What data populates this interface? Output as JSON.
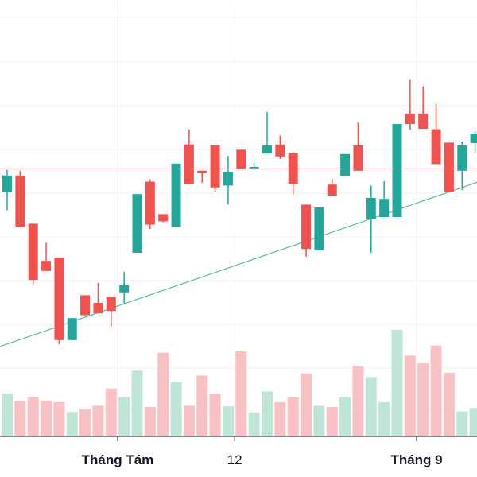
{
  "chart_data": {
    "type": "candlestick",
    "title": "",
    "xlabel": "",
    "ylabel": "",
    "ylim": [
      0,
      100
    ],
    "x_tick_labels": [
      {
        "label": "Tháng Tám",
        "index": 8.5,
        "bold": true
      },
      {
        "label": "12",
        "index": 17.5,
        "bold": false
      },
      {
        "label": "Tháng 9",
        "index": 31.5,
        "bold": true
      }
    ],
    "candles": [
      {
        "o": 59.8,
        "h": 64.4,
        "l": 55.9,
        "c": 63.2
      },
      {
        "o": 63.2,
        "h": 64.2,
        "l": 52.5,
        "c": 52.5
      },
      {
        "o": 53.1,
        "h": 53.1,
        "l": 40.4,
        "c": 41.3
      },
      {
        "o": 45.3,
        "h": 49.1,
        "l": 43.2,
        "c": 43.2
      },
      {
        "o": 46.0,
        "h": 46.0,
        "l": 27.8,
        "c": 28.7
      },
      {
        "o": 28.7,
        "h": 33.3,
        "l": 28.7,
        "c": 33.3
      },
      {
        "o": 38.1,
        "h": 38.1,
        "l": 33.9,
        "c": 33.9
      },
      {
        "o": 36.5,
        "h": 40.7,
        "l": 34.3,
        "c": 34.3
      },
      {
        "o": 37.7,
        "h": 37.7,
        "l": 31.6,
        "c": 34.8
      },
      {
        "o": 38.7,
        "h": 43.0,
        "l": 36.4,
        "c": 40.2
      },
      {
        "o": 47.0,
        "h": 59.3,
        "l": 47.0,
        "c": 59.3
      },
      {
        "o": 61.9,
        "h": 62.4,
        "l": 52.0,
        "c": 52.9
      },
      {
        "o": 55.1,
        "h": 55.1,
        "l": 53.4,
        "c": 53.6
      },
      {
        "o": 52.4,
        "h": 65.7,
        "l": 52.4,
        "c": 65.7
      },
      {
        "o": 69.7,
        "h": 72.9,
        "l": 61.4,
        "c": 61.4
      },
      {
        "o": 64.2,
        "h": 64.2,
        "l": 61.7,
        "c": 63.8
      },
      {
        "o": 69.5,
        "h": 69.5,
        "l": 59.8,
        "c": 60.7
      },
      {
        "o": 61.1,
        "h": 67.3,
        "l": 57.1,
        "c": 64.0
      },
      {
        "o": 68.6,
        "h": 68.6,
        "l": 64.6,
        "c": 64.6
      },
      {
        "o": 64.7,
        "h": 65.9,
        "l": 64.3,
        "c": 65.0
      },
      {
        "o": 67.8,
        "h": 76.5,
        "l": 67.8,
        "c": 69.5
      },
      {
        "o": 69.7,
        "h": 71.6,
        "l": 66.7,
        "c": 67.2
      },
      {
        "o": 67.9,
        "h": 68.1,
        "l": 59.3,
        "c": 61.5
      },
      {
        "o": 57.1,
        "h": 57.1,
        "l": 46.2,
        "c": 47.8
      },
      {
        "o": 47.5,
        "h": 56.5,
        "l": 47.5,
        "c": 56.5
      },
      {
        "o": 61.3,
        "h": 62.5,
        "l": 59.0,
        "c": 59.0
      },
      {
        "o": 63.1,
        "h": 67.7,
        "l": 63.1,
        "c": 67.7
      },
      {
        "o": 69.5,
        "h": 74.3,
        "l": 64.2,
        "c": 64.2
      },
      {
        "o": 54.1,
        "h": 61.1,
        "l": 47.0,
        "c": 58.5
      },
      {
        "o": 54.5,
        "h": 62.0,
        "l": 54.5,
        "c": 58.3
      },
      {
        "o": 54.5,
        "h": 74.0,
        "l": 54.5,
        "c": 74.0
      },
      {
        "o": 76.2,
        "h": 83.4,
        "l": 72.8,
        "c": 74.0
      },
      {
        "o": 76.2,
        "h": 81.9,
        "l": 73.0,
        "c": 73.0
      },
      {
        "o": 72.9,
        "h": 78.2,
        "l": 65.6,
        "c": 65.6
      },
      {
        "o": 70.1,
        "h": 70.1,
        "l": 59.8,
        "c": 59.8
      },
      {
        "o": 64.2,
        "h": 70.3,
        "l": 60.2,
        "c": 69.5
      },
      {
        "o": 70.0,
        "h": 72.5,
        "l": 68.0,
        "c": 72.0
      }
    ],
    "volumes": [
      12.0,
      10.0,
      11.0,
      10.0,
      9.6,
      6.8,
      7.6,
      8.6,
      13.4,
      11.0,
      18.4,
      8.2,
      23.4,
      15.2,
      8.6,
      17.0,
      12.0,
      8.4,
      23.8,
      6.6,
      12.6,
      9.6,
      11.0,
      17.6,
      8.6,
      8.2,
      11.0,
      19.6,
      16.6,
      9.6,
      29.8,
      22.6,
      20.6,
      25.4,
      17.8,
      7.0,
      8.0
    ],
    "trendlines": [
      {
        "from": {
          "index": -0.5,
          "value": 27.4
        },
        "to": {
          "index": 36.5,
          "value": 62.1
        },
        "color": "#5bb99a"
      }
    ],
    "horizontal_lines": [
      {
        "value": 64.6,
        "color": "#f0a0a0"
      }
    ],
    "colors": {
      "up": "#26a69a",
      "down": "#ef5350",
      "up_volume": "#bfe5d6",
      "down_volume": "#f8c1c4",
      "grid": "#f0f2f5",
      "axis": "#131722",
      "text": "#131722"
    }
  }
}
